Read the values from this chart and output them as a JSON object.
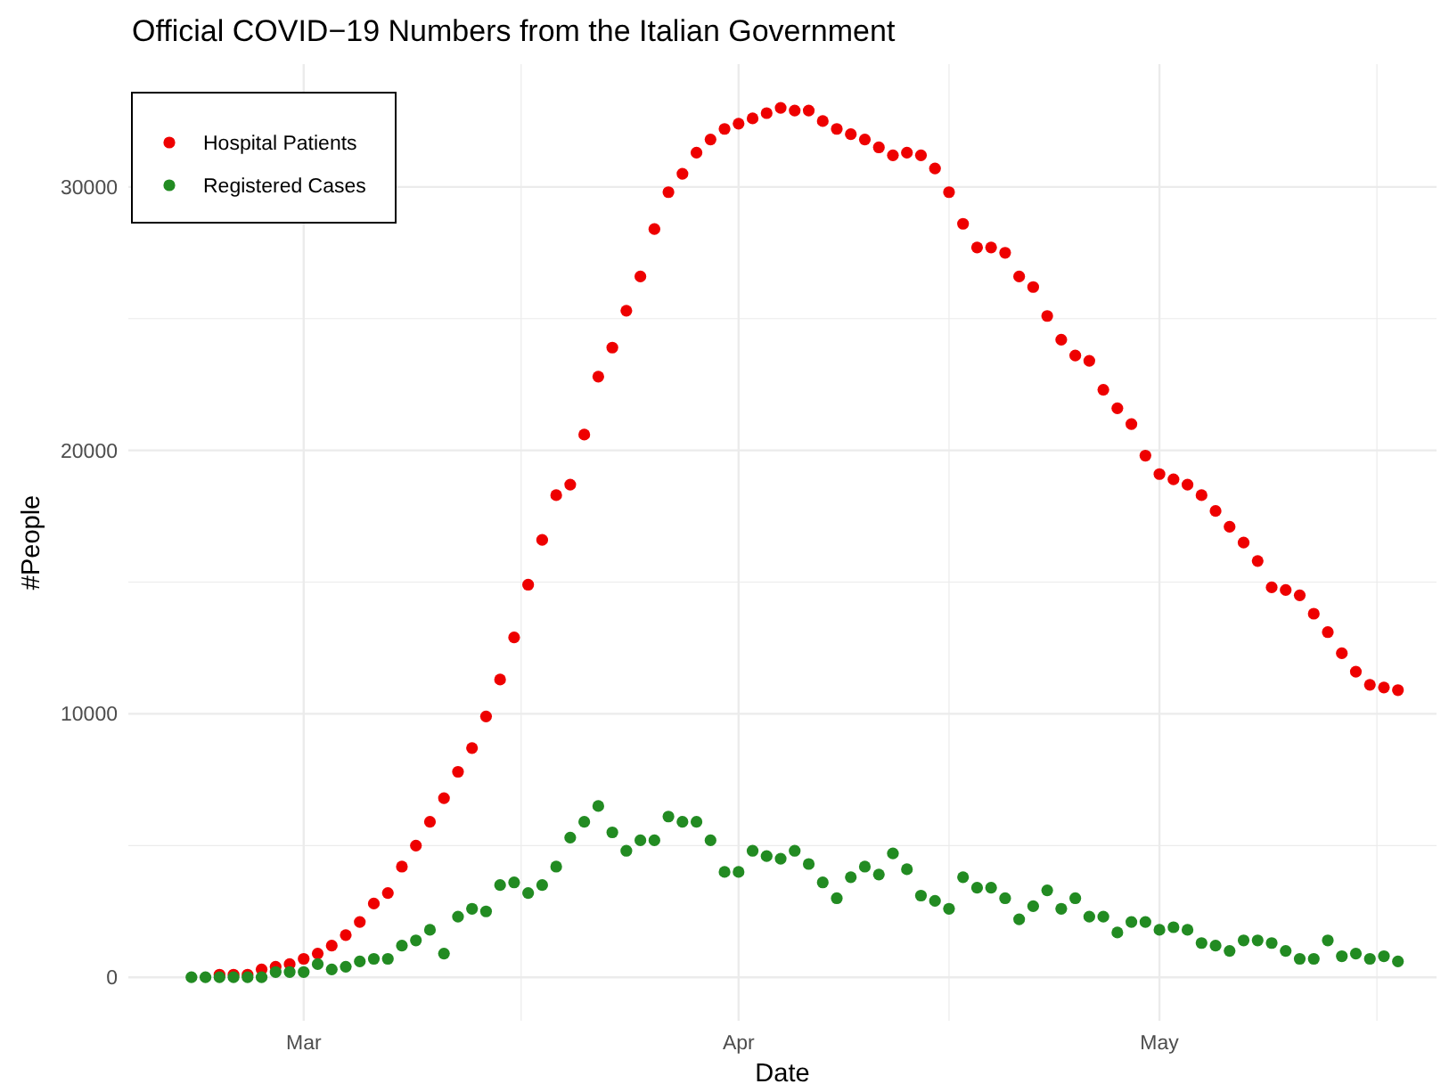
{
  "chart_data": {
    "type": "scatter",
    "title": "Official COVID−19 Numbers from the Italian Government",
    "xlabel": "Date",
    "ylabel": "#People",
    "xlim": [
      "--02-17T12:00",
      "--05-20T18:00"
    ],
    "xticks": [
      {
        "value": "--03-01",
        "label": "Mar"
      },
      {
        "value": "--04-01",
        "label": "Apr"
      },
      {
        "value": "--05-01",
        "label": "May"
      }
    ],
    "ylim": [
      -1650,
      34660
    ],
    "yticks": [
      0,
      10000,
      20000,
      30000
    ],
    "grid": true,
    "legend": "top left",
    "marker": "circle",
    "series": [
      {
        "name": "Hospital Patients",
        "color": "#ee0000",
        "x": [
          "--02-24",
          "--02-25",
          "--02-26",
          "--02-27",
          "--02-28",
          "--02-29",
          "--03-01",
          "--03-02",
          "--03-03",
          "--03-04",
          "--03-05",
          "--03-06",
          "--03-07",
          "--03-08",
          "--03-09",
          "--03-10",
          "--03-11",
          "--03-12",
          "--03-13",
          "--03-14",
          "--03-15",
          "--03-16",
          "--03-17",
          "--03-18",
          "--03-19",
          "--03-20",
          "--03-21",
          "--03-22",
          "--03-23",
          "--03-24",
          "--03-25",
          "--03-26",
          "--03-27",
          "--03-28",
          "--03-29",
          "--03-30",
          "--03-31",
          "--04-01",
          "--04-02",
          "--04-03",
          "--04-04",
          "--04-05",
          "--04-06",
          "--04-07",
          "--04-08",
          "--04-09",
          "--04-10",
          "--04-11",
          "--04-12",
          "--04-13",
          "--04-14",
          "--04-15",
          "--04-16",
          "--04-17",
          "--04-18",
          "--04-19",
          "--04-20",
          "--04-21",
          "--04-22",
          "--04-23",
          "--04-24",
          "--04-25",
          "--04-26",
          "--04-27",
          "--04-28",
          "--04-29",
          "--04-30",
          "--05-01",
          "--05-02",
          "--05-03",
          "--05-04",
          "--05-05",
          "--05-06",
          "--05-07",
          "--05-08",
          "--05-09",
          "--05-10",
          "--05-11",
          "--05-12",
          "--05-13",
          "--05-14",
          "--05-15",
          "--05-16",
          "--05-17",
          "--05-18"
        ],
        "values": [
          100,
          100,
          100,
          300,
          400,
          500,
          700,
          900,
          1200,
          1600,
          2100,
          2800,
          3200,
          4200,
          5000,
          5900,
          6800,
          7800,
          8700,
          9900,
          11300,
          12900,
          14900,
          16600,
          18300,
          18700,
          20600,
          22800,
          23900,
          25300,
          26600,
          28400,
          29800,
          30500,
          31300,
          31800,
          32200,
          32400,
          32600,
          32800,
          33000,
          32900,
          32900,
          32500,
          32200,
          32000,
          31800,
          31500,
          31200,
          31300,
          31200,
          30700,
          29800,
          28600,
          27700,
          27700,
          27500,
          26600,
          26200,
          25100,
          24200,
          23600,
          23400,
          22300,
          21600,
          21000,
          19800,
          19100,
          18900,
          18700,
          18300,
          17700,
          17100,
          16500,
          15800,
          14800,
          14700,
          14500,
          13800,
          13100,
          12300,
          11600,
          11100,
          11000,
          10900
        ]
      },
      {
        "name": "Registered Cases",
        "color": "#228b22",
        "x": [
          "--02-22",
          "--02-23",
          "--02-24",
          "--02-25",
          "--02-26",
          "--02-27",
          "--02-28",
          "--02-29",
          "--03-01",
          "--03-02",
          "--03-03",
          "--03-04",
          "--03-05",
          "--03-06",
          "--03-07",
          "--03-08",
          "--03-09",
          "--03-10",
          "--03-11",
          "--03-12",
          "--03-13",
          "--03-14",
          "--03-15",
          "--03-16",
          "--03-17",
          "--03-18",
          "--03-19",
          "--03-20",
          "--03-21",
          "--03-22",
          "--03-23",
          "--03-24",
          "--03-25",
          "--03-26",
          "--03-27",
          "--03-28",
          "--03-29",
          "--03-30",
          "--03-31",
          "--04-01",
          "--04-02",
          "--04-03",
          "--04-04",
          "--04-05",
          "--04-06",
          "--04-07",
          "--04-08",
          "--04-09",
          "--04-10",
          "--04-11",
          "--04-12",
          "--04-13",
          "--04-14",
          "--04-15",
          "--04-16",
          "--04-17",
          "--04-18",
          "--04-19",
          "--04-20",
          "--04-21",
          "--04-22",
          "--04-23",
          "--04-24",
          "--04-25",
          "--04-26",
          "--04-27",
          "--04-28",
          "--04-29",
          "--04-30",
          "--05-01",
          "--05-02",
          "--05-03",
          "--05-04",
          "--05-05",
          "--05-06",
          "--05-07",
          "--05-08",
          "--05-09",
          "--05-10",
          "--05-11",
          "--05-12",
          "--05-13",
          "--05-14",
          "--05-15",
          "--05-16",
          "--05-17",
          "--05-18"
        ],
        "values": [
          0,
          0,
          0,
          0,
          0,
          0,
          200,
          200,
          200,
          500,
          300,
          400,
          600,
          700,
          700,
          1200,
          1400,
          1800,
          900,
          2300,
          2600,
          2500,
          3500,
          3600,
          3200,
          3500,
          4200,
          5300,
          5900,
          6500,
          5500,
          4800,
          5200,
          5200,
          6100,
          5900,
          5900,
          5200,
          4000,
          4000,
          4800,
          4600,
          4500,
          4800,
          4300,
          3600,
          3000,
          3800,
          4200,
          3900,
          4700,
          4100,
          3100,
          2900,
          2600,
          3800,
          3400,
          3400,
          3000,
          2200,
          2700,
          3300,
          2600,
          3000,
          2300,
          2300,
          1700,
          2100,
          2100,
          1800,
          1900,
          1800,
          1300,
          1200,
          1000,
          1400,
          1400,
          1300,
          1000,
          700,
          700,
          1400,
          800,
          900,
          700,
          800,
          600
        ]
      }
    ]
  }
}
